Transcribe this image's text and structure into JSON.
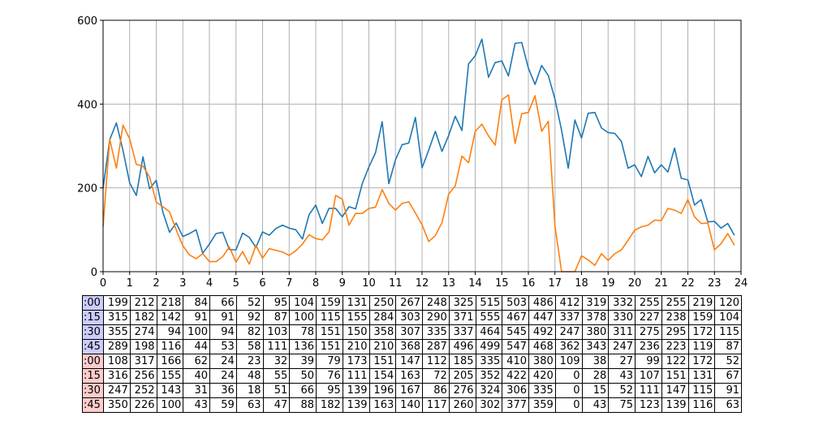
{
  "chart_data": {
    "type": "line",
    "xlim": [
      0,
      24
    ],
    "ylim": [
      0,
      600
    ],
    "x_ticks": [
      "0",
      "1",
      "2",
      "3",
      "4",
      "5",
      "6",
      "7",
      "8",
      "9",
      "10",
      "11",
      "12",
      "13",
      "14",
      "15",
      "16",
      "17",
      "18",
      "19",
      "20",
      "21",
      "22",
      "23",
      "24"
    ],
    "y_ticks": [
      "0",
      "200",
      "400",
      "600"
    ],
    "grid": true,
    "colors": {
      "series_blue": "#1f77b4",
      "series_orange": "#ff7f0e",
      "row_label_blue": "#ccccff",
      "row_label_red": "#ffcccc"
    },
    "row_labels": [
      ":00",
      ":15",
      ":30",
      ":45",
      ":00",
      ":15",
      ":30",
      ":45"
    ],
    "series": [
      {
        "color": "#1f77b4",
        "rows": [
          [
            199,
            212,
            218,
            84,
            66,
            52,
            95,
            104,
            159,
            131,
            250,
            267,
            248,
            325,
            515,
            503,
            486,
            412,
            319,
            332,
            255,
            255,
            219,
            120
          ],
          [
            315,
            182,
            142,
            91,
            91,
            92,
            87,
            100,
            115,
            155,
            284,
            303,
            290,
            371,
            555,
            467,
            447,
            337,
            378,
            330,
            227,
            238,
            159,
            104
          ],
          [
            355,
            274,
            94,
            100,
            94,
            82,
            103,
            78,
            151,
            150,
            358,
            307,
            335,
            337,
            464,
            545,
            492,
            247,
            380,
            311,
            275,
            295,
            172,
            115
          ],
          [
            289,
            198,
            116,
            44,
            53,
            58,
            111,
            136,
            151,
            210,
            210,
            368,
            287,
            496,
            499,
            547,
            468,
            362,
            343,
            247,
            236,
            223,
            119,
            87
          ]
        ]
      },
      {
        "color": "#ff7f0e",
        "rows": [
          [
            108,
            317,
            166,
            62,
            24,
            23,
            32,
            39,
            79,
            173,
            151,
            147,
            112,
            185,
            335,
            410,
            380,
            109,
            38,
            27,
            99,
            122,
            172,
            52
          ],
          [
            316,
            256,
            155,
            40,
            24,
            48,
            55,
            50,
            76,
            111,
            154,
            163,
            72,
            205,
            352,
            422,
            420,
            0,
            28,
            43,
            107,
            151,
            131,
            67
          ],
          [
            247,
            252,
            143,
            31,
            36,
            18,
            51,
            66,
            95,
            139,
            196,
            167,
            86,
            276,
            324,
            306,
            335,
            0,
            15,
            52,
            111,
            147,
            115,
            91
          ],
          [
            350,
            226,
            100,
            43,
            59,
            63,
            47,
            88,
            182,
            139,
            163,
            140,
            117,
            260,
            302,
            377,
            359,
            0,
            43,
            75,
            123,
            139,
            116,
            63
          ]
        ]
      }
    ]
  }
}
